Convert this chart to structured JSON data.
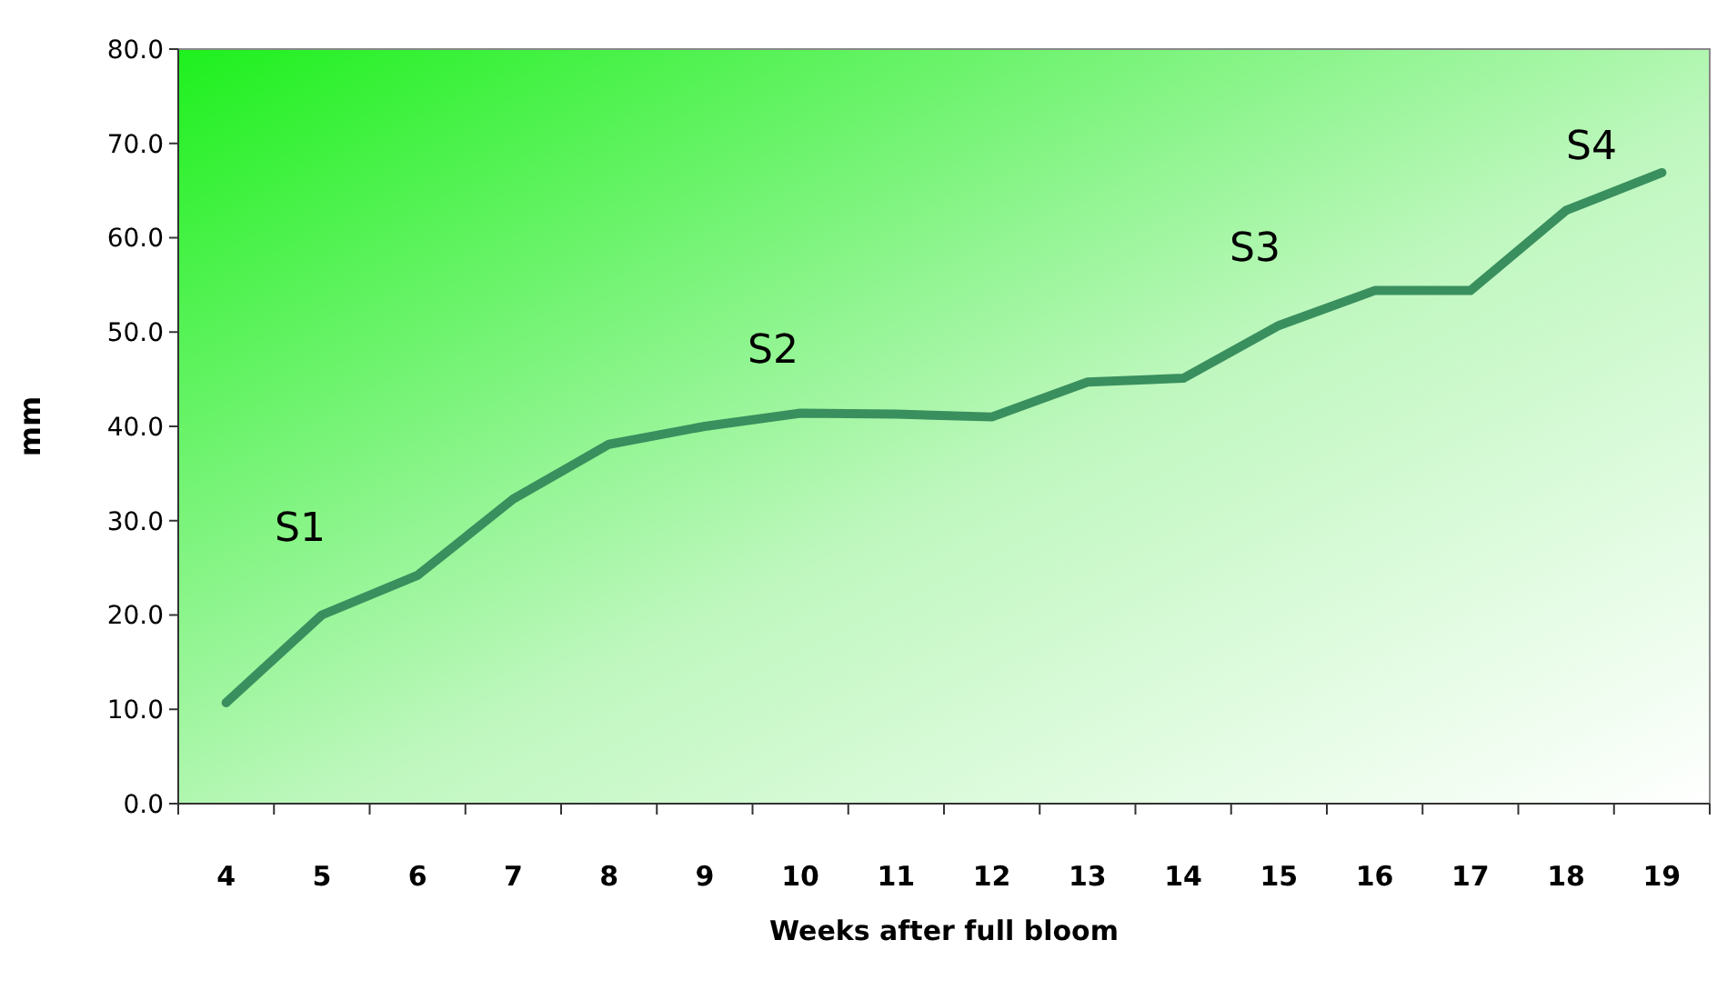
{
  "chart_data": {
    "type": "line",
    "xlabel": "Weeks after full bloom",
    "ylabel": "mm",
    "categories": [
      "4",
      "5",
      "6",
      "7",
      "8",
      "9",
      "10",
      "11",
      "12",
      "13",
      "14",
      "15",
      "16",
      "17",
      "18",
      "19"
    ],
    "series": [
      {
        "color": "#3a8f5e",
        "values": [
          10.7,
          20.0,
          24.2,
          32.3,
          38.1,
          40.0,
          41.4,
          41.3,
          41.0,
          44.7,
          45.1,
          50.7,
          54.4,
          54.4,
          62.9,
          66.9
        ]
      }
    ],
    "ylim": [
      0,
      80
    ],
    "yticks": [
      {
        "value": 0,
        "label": "0.0"
      },
      {
        "value": 10,
        "label": "10.0"
      },
      {
        "value": 20,
        "label": "20.0"
      },
      {
        "value": 30,
        "label": "30.0"
      },
      {
        "value": 40,
        "label": "40.0"
      },
      {
        "value": 50,
        "label": "50.0"
      },
      {
        "value": 60,
        "label": "60.0"
      },
      {
        "value": 70,
        "label": "70.0"
      },
      {
        "value": 80,
        "label": "80.0"
      }
    ],
    "grid": false,
    "marker": "none",
    "line_style": "solid",
    "annotations": [
      "S1",
      "S2",
      "S3",
      "S4"
    ]
  }
}
